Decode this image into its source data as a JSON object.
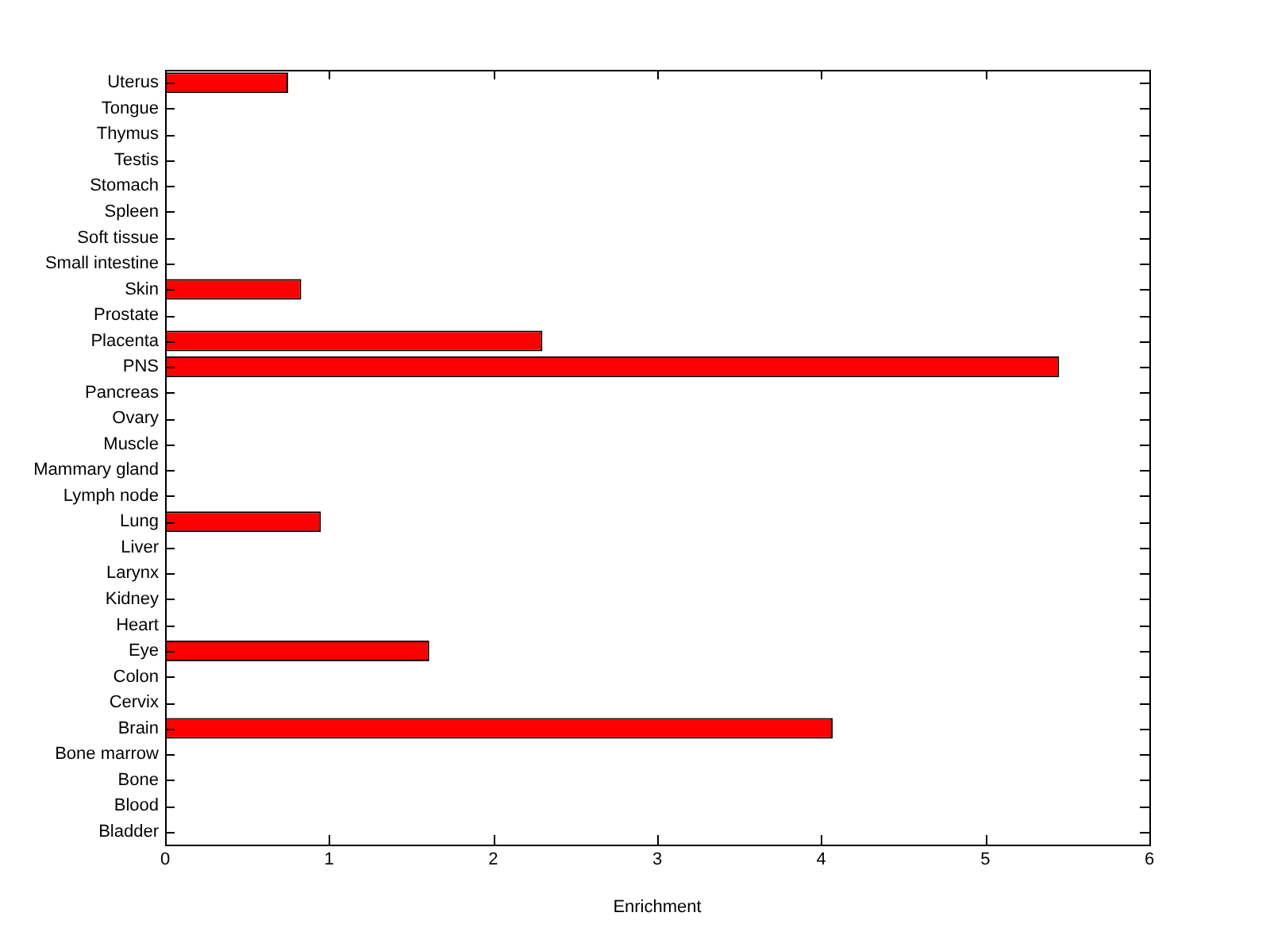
{
  "chart_data": {
    "type": "bar",
    "orientation": "horizontal",
    "xlabel": "Enrichment",
    "categories": [
      "Uterus",
      "Tongue",
      "Thymus",
      "Testis",
      "Stomach",
      "Spleen",
      "Soft tissue",
      "Small intestine",
      "Skin",
      "Prostate",
      "Placenta",
      "PNS",
      "Pancreas",
      "Ovary",
      "Muscle",
      "Mammary gland",
      "Lymph node",
      "Lung",
      "Liver",
      "Larynx",
      "Kidney",
      "Heart",
      "Eye",
      "Colon",
      "Cervix",
      "Brain",
      "Bone marrow",
      "Bone",
      "Blood",
      "Bladder"
    ],
    "values": [
      0.75,
      0,
      0,
      0,
      0,
      0,
      0,
      0,
      0.83,
      0,
      2.3,
      5.45,
      0,
      0,
      0,
      0,
      0,
      0.95,
      0,
      0,
      0,
      0,
      1.61,
      0,
      0,
      4.07,
      0,
      0,
      0,
      0
    ],
    "color": "#ff0000",
    "xlim": [
      0,
      6
    ],
    "xticks": [
      0,
      1,
      2,
      3,
      4,
      5,
      6
    ],
    "grid": false,
    "legend": false
  }
}
